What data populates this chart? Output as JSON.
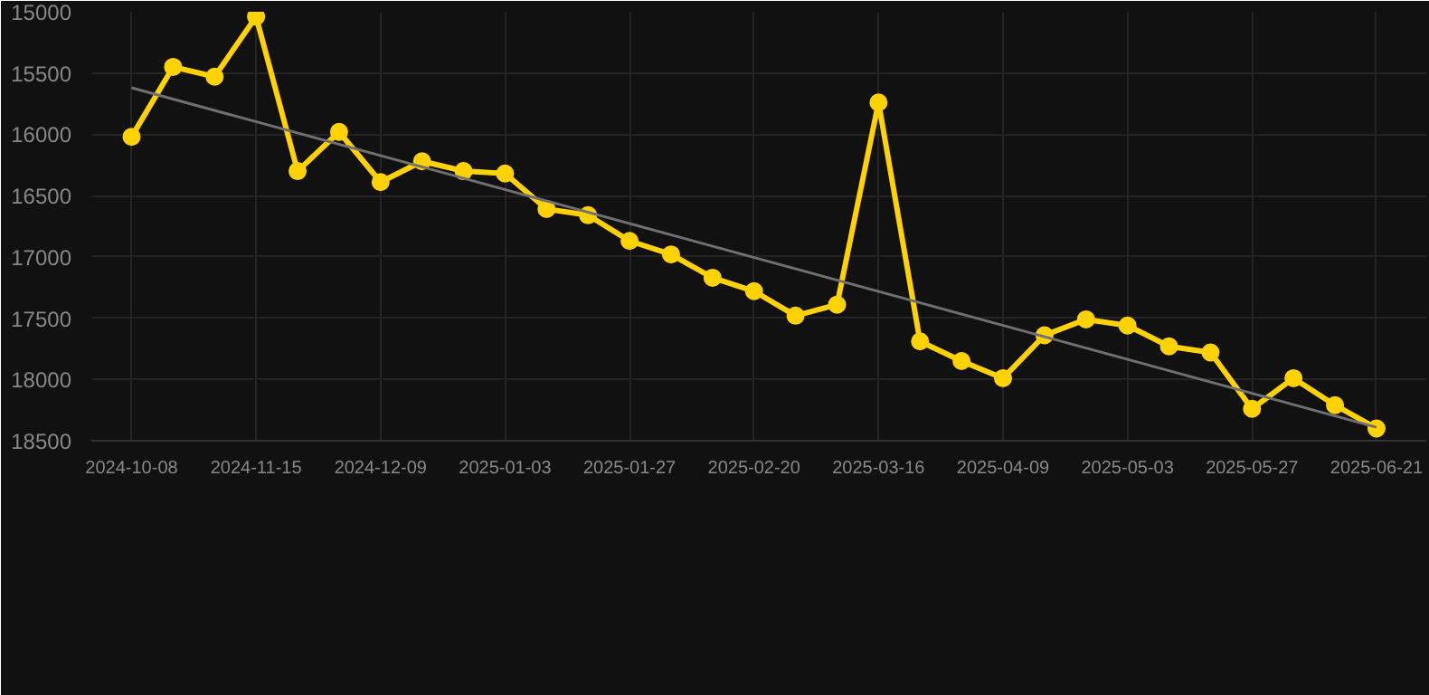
{
  "chart_data": {
    "type": "line",
    "categories": [
      "2024-10-08",
      null,
      null,
      "2024-11-15",
      null,
      null,
      "2024-12-09",
      null,
      null,
      "2025-01-03",
      null,
      null,
      "2025-01-27",
      null,
      null,
      "2025-02-20",
      null,
      null,
      "2025-03-16",
      null,
      null,
      "2025-04-09",
      null,
      null,
      "2025-05-03",
      null,
      null,
      "2025-05-27",
      null,
      null,
      "2025-06-21"
    ],
    "series": [
      {
        "color": "#ffd200",
        "marker": "circle",
        "values": [
          16020,
          15450,
          15530,
          15040,
          16300,
          15980,
          16390,
          16220,
          16300,
          16320,
          16610,
          16660,
          16870,
          16980,
          17170,
          17280,
          17480,
          17390,
          15740,
          17690,
          17850,
          17990,
          17640,
          17510,
          17560,
          17730,
          17780,
          18240,
          17990,
          18210,
          18400
        ]
      },
      {
        "type": "line",
        "color": "#707070",
        "marker": "none",
        "values": [
          15620,
          null,
          null,
          null,
          null,
          null,
          null,
          null,
          null,
          null,
          null,
          null,
          null,
          null,
          null,
          null,
          null,
          null,
          null,
          null,
          null,
          null,
          null,
          null,
          null,
          null,
          null,
          null,
          null,
          null,
          18390
        ]
      }
    ],
    "ylim": [
      18500,
      15000
    ],
    "yticks": [
      15000,
      15500,
      16000,
      16500,
      17000,
      17500,
      18000,
      18500
    ],
    "grid": true
  }
}
